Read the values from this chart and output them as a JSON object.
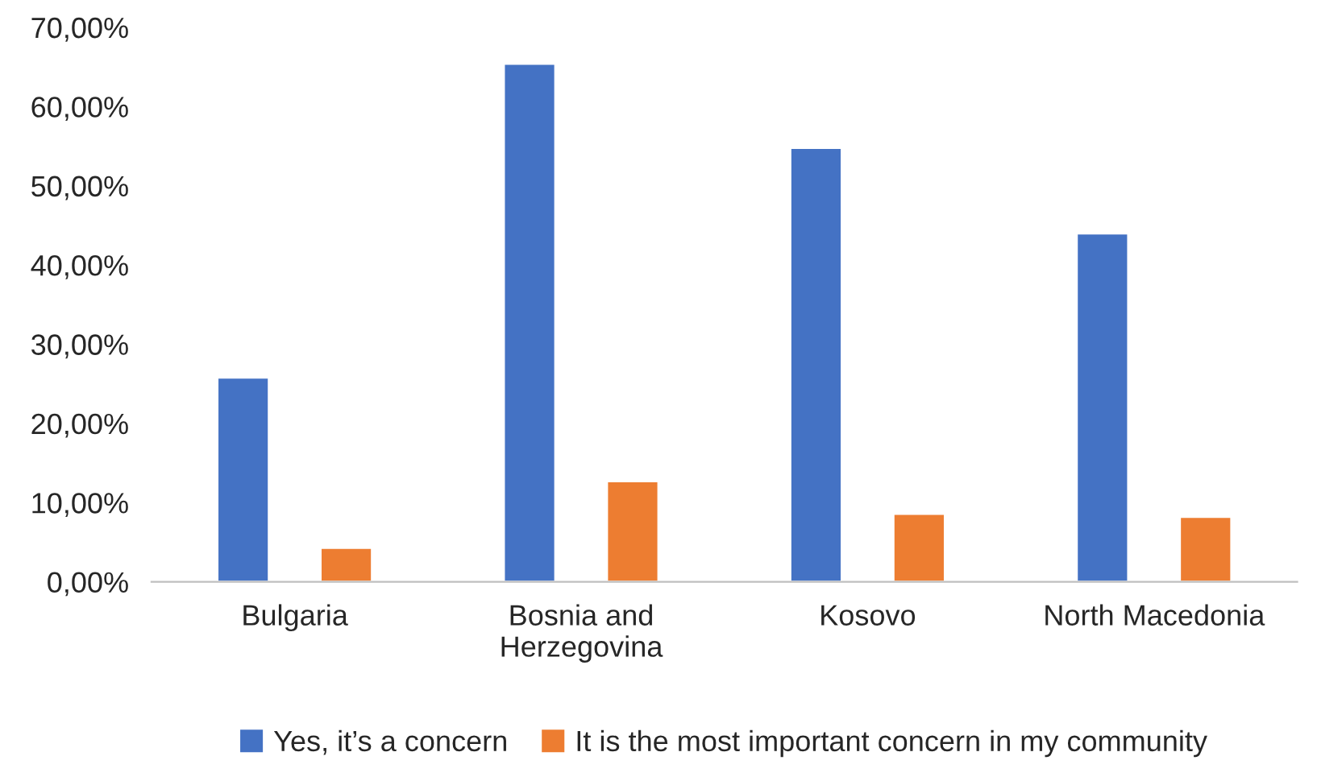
{
  "chart_data": {
    "type": "bar",
    "categories": [
      "Bulgaria",
      "Bosnia and\nHerzegovina",
      "Kosovo",
      "North Macedonia"
    ],
    "series": [
      {
        "name": "Yes, it’s a concern",
        "color": "#4472c4",
        "values": [
          25.8,
          65.4,
          54.8,
          44.0
        ]
      },
      {
        "name": "It is the most important concern in my community",
        "color": "#ed7d31",
        "values": [
          4.3,
          12.7,
          8.6,
          8.2
        ]
      }
    ],
    "ylim": [
      0,
      70
    ],
    "yticks": [
      {
        "value": 0,
        "label": "0,00%"
      },
      {
        "value": 10,
        "label": "10,00%"
      },
      {
        "value": 20,
        "label": "20,00%"
      },
      {
        "value": 30,
        "label": "30,00%"
      },
      {
        "value": 40,
        "label": "40,00%"
      },
      {
        "value": 50,
        "label": "50,00%"
      },
      {
        "value": 60,
        "label": "60,00%"
      },
      {
        "value": 70,
        "label": "70,00%"
      }
    ],
    "grid": false,
    "legend": "bottom"
  }
}
